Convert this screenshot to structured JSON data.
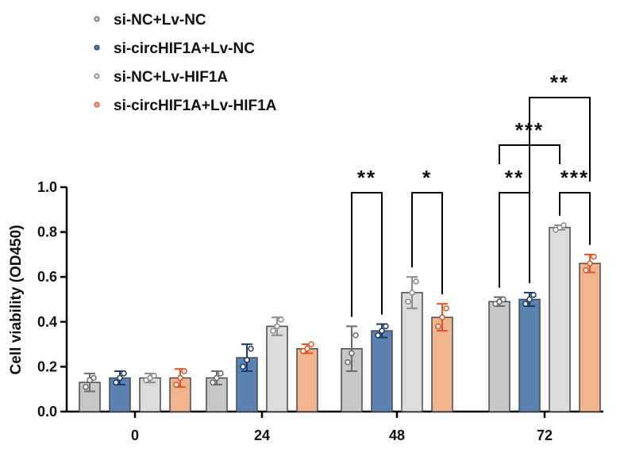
{
  "chart_data": {
    "type": "bar",
    "categories": [
      "0",
      "24",
      "48",
      "72"
    ],
    "ylabel": "Cell viability (OD450)",
    "xlabel": "",
    "ylim": [
      0,
      1.0
    ],
    "yticks": [
      "0.0",
      "0.2",
      "0.4",
      "0.6",
      "0.8",
      "1.0"
    ],
    "legend_position": "top-left",
    "series": [
      {
        "name": "si-NC+Lv-NC",
        "color": "#c7c7c7",
        "error_color": "#6b6b6b",
        "values": [
          0.13,
          0.15,
          0.28,
          0.49
        ],
        "errors": [
          0.04,
          0.03,
          0.1,
          0.02
        ],
        "points": [
          [
            0.11,
            0.14,
            0.15
          ],
          [
            0.13,
            0.15,
            0.17
          ],
          [
            0.22,
            0.26,
            0.34
          ],
          [
            0.48,
            0.49,
            0.5
          ]
        ]
      },
      {
        "name": "si-circHIF1A+Lv-NC",
        "color": "#5b82b0",
        "error_color": "#1f3a66",
        "values": [
          0.15,
          0.24,
          0.36,
          0.5
        ],
        "errors": [
          0.03,
          0.06,
          0.03,
          0.03
        ],
        "points": [
          [
            0.13,
            0.15,
            0.17
          ],
          [
            0.2,
            0.23,
            0.28
          ],
          [
            0.34,
            0.36,
            0.38
          ],
          [
            0.48,
            0.5,
            0.52
          ]
        ]
      },
      {
        "name": "si-NC+Lv-HIF1A",
        "color": "#dcdcdc",
        "error_color": "#8a8a8a",
        "values": [
          0.15,
          0.38,
          0.53,
          0.82
        ],
        "errors": [
          0.02,
          0.04,
          0.07,
          0.01
        ],
        "points": [
          [
            0.14,
            0.15,
            0.16
          ],
          [
            0.36,
            0.38,
            0.41
          ],
          [
            0.49,
            0.53,
            0.58
          ],
          [
            0.81,
            0.82,
            0.83
          ]
        ]
      },
      {
        "name": "si-circHIF1A+Lv-HIF1A",
        "color": "#f0b48e",
        "error_color": "#d4562a",
        "values": [
          0.15,
          0.28,
          0.42,
          0.66
        ],
        "errors": [
          0.04,
          0.02,
          0.06,
          0.04
        ],
        "points": [
          [
            0.12,
            0.15,
            0.18
          ],
          [
            0.27,
            0.28,
            0.3
          ],
          [
            0.38,
            0.42,
            0.46
          ],
          [
            0.63,
            0.66,
            0.69
          ]
        ]
      }
    ],
    "significance": [
      {
        "category": "48",
        "from": 0,
        "to": 1,
        "label": "**",
        "level": 0
      },
      {
        "category": "48",
        "from": 2,
        "to": 3,
        "label": "*",
        "level": 0
      },
      {
        "category": "72",
        "from": 0,
        "to": 1,
        "label": "**",
        "level": 0
      },
      {
        "category": "72",
        "from": 2,
        "to": 3,
        "label": "***",
        "level": 0
      },
      {
        "category": "72",
        "from": 0,
        "to": 2,
        "label": "***",
        "level": 1
      },
      {
        "category": "72",
        "from": 1,
        "to": 3,
        "label": "**",
        "level": 2
      }
    ]
  }
}
